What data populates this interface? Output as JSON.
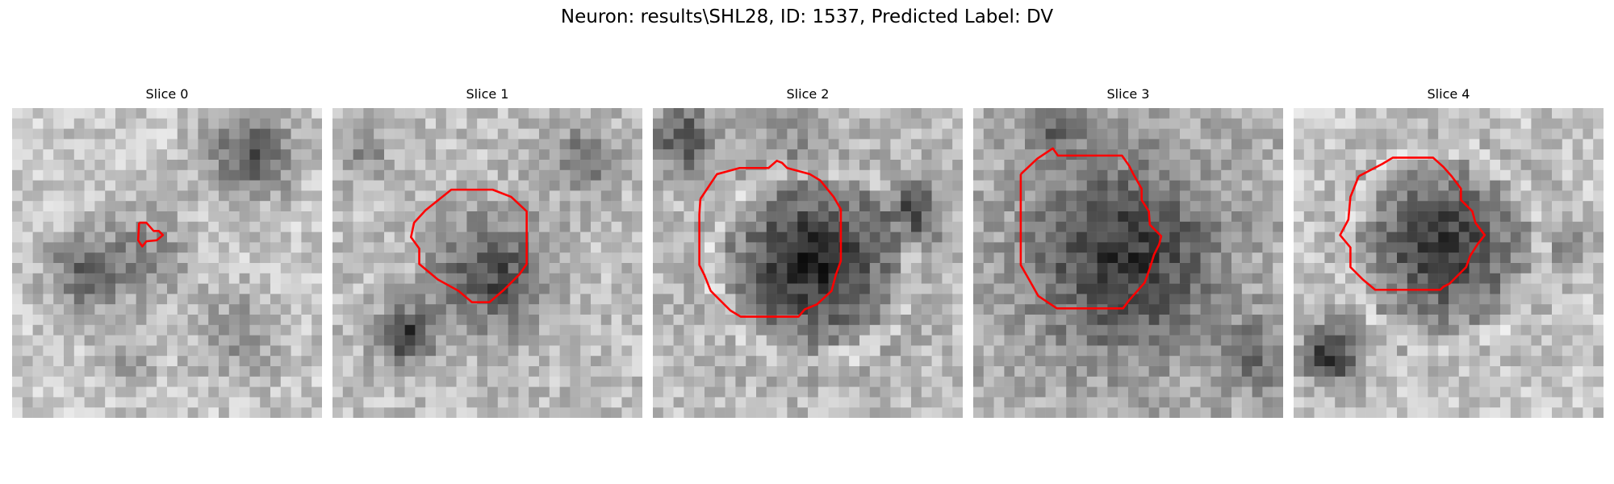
{
  "figure": {
    "title": "Neuron: results\\SHL28, ID: 1537, Predicted Label: DV",
    "outline_color": "#ff0000"
  },
  "panels": [
    {
      "title": "Slice 0"
    },
    {
      "title": "Slice 1"
    },
    {
      "title": "Slice 2"
    },
    {
      "title": "Slice 3"
    },
    {
      "title": "Slice 4"
    }
  ]
}
